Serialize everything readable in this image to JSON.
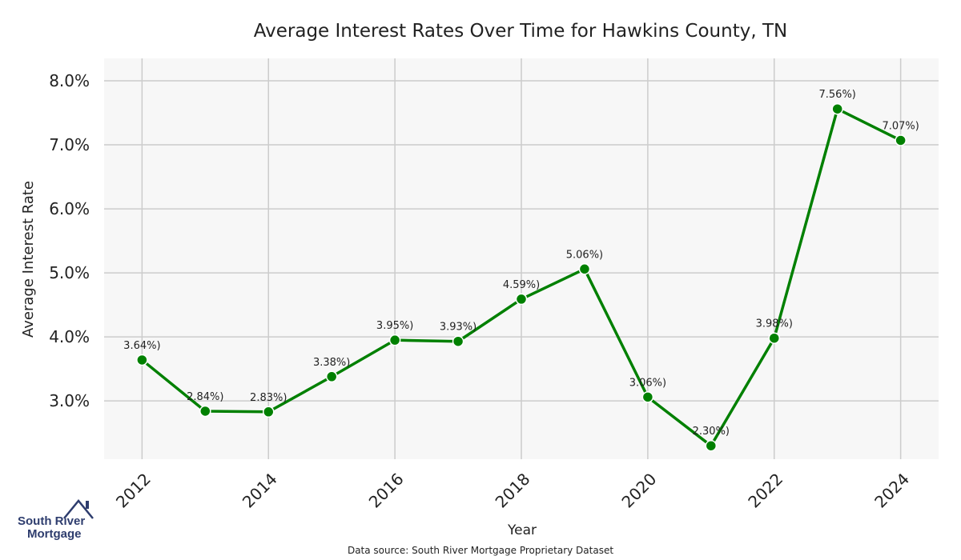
{
  "chart_data": {
    "type": "line",
    "title": "Average Interest Rates Over Time for Hawkins County, TN",
    "xlabel": "Year",
    "ylabel": "Average Interest Rate",
    "x": [
      2012,
      2013,
      2014,
      2015,
      2016,
      2017,
      2018,
      2019,
      2020,
      2021,
      2022,
      2023,
      2024
    ],
    "series": [
      {
        "values": [
          3.64,
          2.84,
          2.83,
          3.38,
          3.95,
          3.93,
          4.59,
          5.06,
          3.06,
          2.3,
          3.98,
          7.56,
          7.07
        ],
        "point_labels": [
          "3.64%)",
          "2.84%)",
          "2.83%)",
          "3.38%)",
          "3.95%)",
          "3.93%)",
          "4.59%)",
          "5.06%)",
          "3.06%)",
          "2.30%)",
          "3.98%)",
          "7.56%)",
          "7.07%)"
        ]
      }
    ],
    "x_ticks": [
      "2012",
      "2014",
      "2016",
      "2018",
      "2020",
      "2022",
      "2024"
    ],
    "y_ticks": [
      "3.0%",
      "4.0%",
      "5.0%",
      "6.0%",
      "7.0%",
      "8.0%"
    ],
    "xlim": [
      2011.4,
      2024.6
    ],
    "ylim": [
      2.09,
      8.35
    ],
    "grid": true,
    "colors": {
      "line": "#008000",
      "plot_bg": "#f7f7f7",
      "grid": "#cccccc"
    }
  },
  "logo": {
    "line1": "South River",
    "line2": "Mortgage",
    "color": "#2e3d6e"
  },
  "footer": {
    "source": "Data source: South River Mortgage Proprietary Dataset"
  }
}
